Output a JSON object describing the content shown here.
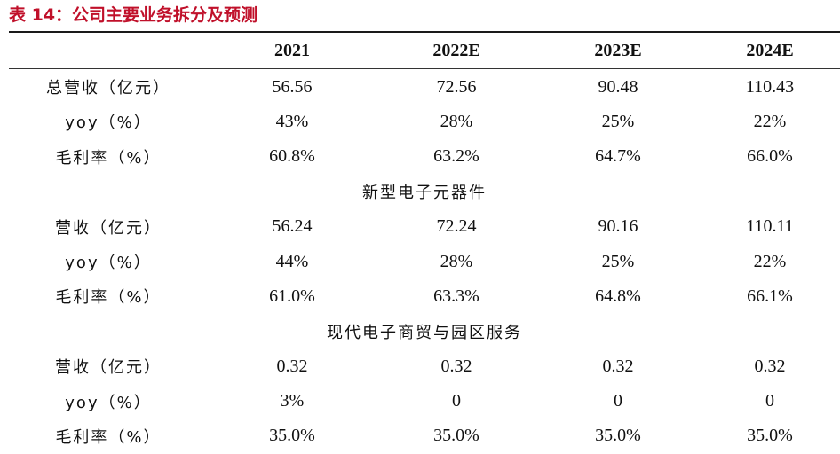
{
  "title": "表 14：公司主要业务拆分及预测",
  "columns": [
    "",
    "2021",
    "2022E",
    "2023E",
    "2024E"
  ],
  "sections": [
    {
      "name": "",
      "rows": [
        {
          "label": "总营收（亿元）",
          "values": [
            "56.56",
            "72.56",
            "90.48",
            "110.43"
          ]
        },
        {
          "label": "yoy（%）",
          "values": [
            "43%",
            "28%",
            "25%",
            "22%"
          ]
        },
        {
          "label": "毛利率（%）",
          "values": [
            "60.8%",
            "63.2%",
            "64.7%",
            "66.0%"
          ]
        }
      ]
    },
    {
      "name": "新型电子元器件",
      "rows": [
        {
          "label": "营收（亿元）",
          "values": [
            "56.24",
            "72.24",
            "90.16",
            "110.11"
          ]
        },
        {
          "label": "yoy（%）",
          "values": [
            "44%",
            "28%",
            "25%",
            "22%"
          ]
        },
        {
          "label": "毛利率（%）",
          "values": [
            "61.0%",
            "63.3%",
            "64.8%",
            "66.1%"
          ]
        }
      ]
    },
    {
      "name": "现代电子商贸与园区服务",
      "rows": [
        {
          "label": "营收（亿元）",
          "values": [
            "0.32",
            "0.32",
            "0.32",
            "0.32"
          ]
        },
        {
          "label": "yoy（%）",
          "values": [
            "3%",
            "0",
            "0",
            "0"
          ]
        },
        {
          "label": "毛利率（%）",
          "values": [
            "35.0%",
            "35.0%",
            "35.0%",
            "35.0%"
          ]
        }
      ]
    }
  ]
}
